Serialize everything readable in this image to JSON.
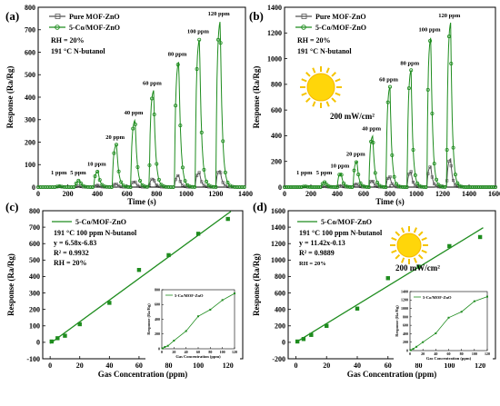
{
  "chart_data": [
    {
      "panel": "(a)",
      "type": "line",
      "xlabel": "Time (s)",
      "ylabel": "Response (Ra/Rg)",
      "xlim": [
        0,
        1400
      ],
      "ylim": [
        0,
        800
      ],
      "xticks": [
        0,
        200,
        400,
        600,
        800,
        1000,
        1200,
        1400
      ],
      "yticks": [
        0,
        100,
        200,
        300,
        400,
        500,
        600,
        700,
        800
      ],
      "legend": [
        "Pure MOF-ZnO",
        "5-Co/MOF-ZnO"
      ],
      "annotations": [
        "RH = 20%",
        "191 °C N-butanol"
      ],
      "pulse_labels": [
        "1 ppm",
        "5 ppm",
        "10 ppm",
        "20 ppm",
        "40 ppm",
        "60 ppm",
        "80 ppm",
        "100 ppm",
        "120 ppm"
      ],
      "pulse_start_s": [
        120,
        250,
        375,
        500,
        625,
        750,
        920,
        1060,
        1200
      ],
      "series": [
        {
          "name": "Pure MOF-ZnO",
          "color": "#555555",
          "peaks": [
            2,
            4,
            8,
            14,
            24,
            38,
            52,
            65,
            74
          ]
        },
        {
          "name": "5-Co/MOF-ZnO",
          "color": "#1e8c1e",
          "peaks": [
            4,
            30,
            70,
            190,
            300,
            430,
            560,
            660,
            740
          ]
        }
      ]
    },
    {
      "panel": "(b)",
      "type": "line",
      "xlabel": "Time (s)",
      "ylabel": "Response (Ra/Rg)",
      "xlim": [
        0,
        1600
      ],
      "ylim": [
        0,
        1400
      ],
      "xticks": [
        0,
        200,
        400,
        600,
        800,
        1000,
        1200,
        1400,
        1600
      ],
      "yticks": [
        0,
        200,
        400,
        600,
        800,
        1000,
        1200,
        1400
      ],
      "legend": [
        "Pure MOF-ZnO",
        "5-Co/MOF-ZnO"
      ],
      "annotations": [
        "RH = 20%",
        "191 °C N-butanol",
        "200 mW/cm²"
      ],
      "pulse_labels": [
        "1 ppm",
        "5 ppm",
        "10 ppm",
        "20 ppm",
        "40 ppm",
        "60 ppm",
        "80 ppm",
        "100 ppm",
        "120 ppm"
      ],
      "pulse_start_s": [
        130,
        280,
        400,
        520,
        640,
        770,
        930,
        1080,
        1230
      ],
      "series": [
        {
          "name": "Pure MOF-ZnO",
          "color": "#555555",
          "peaks": [
            3,
            6,
            12,
            25,
            50,
            80,
            120,
            160,
            220
          ]
        },
        {
          "name": "5-Co/MOF-ZnO",
          "color": "#1e8c1e",
          "peaks": [
            5,
            40,
            110,
            200,
            400,
            780,
            910,
            1170,
            1280
          ]
        }
      ]
    },
    {
      "panel": "(c)",
      "type": "scatter",
      "xlabel": "Gas Concentration (ppm)",
      "ylabel": "Response (Ra/Rg)",
      "xlim": [
        -5,
        130
      ],
      "ylim": [
        -100,
        800
      ],
      "xticks": [
        0,
        20,
        40,
        60,
        80,
        100,
        120
      ],
      "yticks": [
        -100,
        0,
        100,
        200,
        300,
        400,
        500,
        600,
        700,
        800
      ],
      "legend": [
        "5-Co/MOF-ZnO"
      ],
      "annotations": [
        "191 °C 100 ppm N-butanol",
        "y = 6.58x-6.83",
        "R² = 0.9932",
        "RH = 20%"
      ],
      "fit": {
        "slope": 6.58,
        "intercept": -6.83
      },
      "x": [
        1,
        5,
        10,
        20,
        40,
        60,
        80,
        100,
        120
      ],
      "series": [
        {
          "name": "5-Co/MOF-ZnO",
          "color": "#1e8c1e",
          "values": [
            5,
            25,
            40,
            110,
            240,
            440,
            530,
            660,
            750
          ]
        }
      ],
      "inset": {
        "legend": "5-Co/MOF-ZnO",
        "xlabel": "Gas Concentration (ppm)",
        "ylabel": "Response (Ra/Rg)",
        "xlim": [
          0,
          120
        ],
        "ylim": [
          0,
          800
        ],
        "xticks": [
          0,
          20,
          40,
          60,
          80,
          100,
          120
        ],
        "yticks": [
          0,
          200,
          400,
          600,
          800
        ]
      }
    },
    {
      "panel": "(d)",
      "type": "scatter",
      "xlabel": "Gas Concentration (ppm)",
      "ylabel": "Response (Ra/Rg)",
      "xlim": [
        -5,
        130
      ],
      "ylim": [
        -200,
        1600
      ],
      "xticks": [
        0,
        20,
        40,
        60,
        80,
        100,
        120
      ],
      "yticks": [
        -200,
        0,
        200,
        400,
        600,
        800,
        1000,
        1200,
        1400,
        1600
      ],
      "legend": [
        "5-Co/MOF-ZnO"
      ],
      "annotations": [
        "191 °C 100 ppm N-butanol",
        "y = 11.42x-0.13",
        "R² = 0.9889",
        "RH = 20%",
        "200 mW/cm²"
      ],
      "fit": {
        "slope": 11.42,
        "intercept": -0.13
      },
      "x": [
        1,
        5,
        10,
        20,
        40,
        60,
        80,
        100,
        120
      ],
      "series": [
        {
          "name": "5-Co/MOF-ZnO",
          "color": "#1e8c1e",
          "values": [
            10,
            40,
            90,
            200,
            410,
            780,
            920,
            1170,
            1280
          ]
        }
      ],
      "inset": {
        "legend": "5-Co/MOF-ZnO",
        "xlabel": "Gas Concentration (ppm)",
        "ylabel": "Response (Ra/Rg)",
        "xlim": [
          0,
          120
        ],
        "ylim": [
          0,
          1400
        ],
        "xticks": [
          0,
          20,
          40,
          60,
          80,
          100,
          120
        ],
        "yticks": [
          0,
          200,
          400,
          600,
          800,
          1000,
          1200,
          1400
        ]
      }
    }
  ]
}
